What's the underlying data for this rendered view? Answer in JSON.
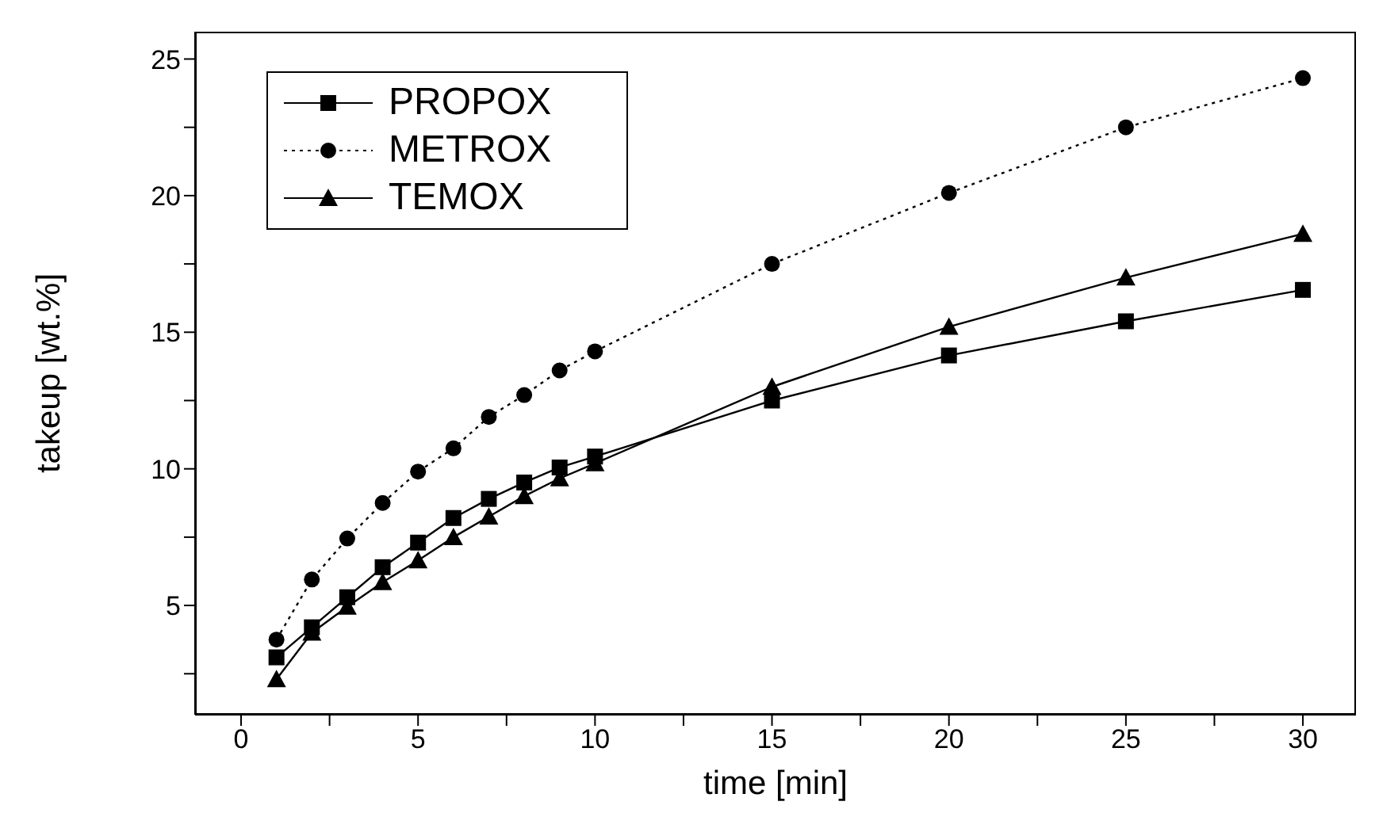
{
  "chart_data": {
    "type": "line",
    "xlabel": "time [min]",
    "ylabel": "takeup [wt.%]",
    "x": [
      1,
      2,
      3,
      4,
      5,
      6,
      7,
      8,
      9,
      10,
      15,
      20,
      25,
      30
    ],
    "series": [
      {
        "name": "PROPOX",
        "color": "#000000",
        "marker": "square",
        "line_style": "solid",
        "values": [
          3.1,
          4.2,
          5.3,
          6.4,
          7.3,
          8.2,
          8.9,
          9.5,
          10.05,
          10.45,
          12.5,
          14.15,
          15.4,
          16.55
        ]
      },
      {
        "name": "METROX",
        "color": "#000000",
        "marker": "circle",
        "line_style": "dotted",
        "values": [
          3.75,
          5.95,
          7.45,
          8.75,
          9.9,
          10.75,
          11.9,
          12.7,
          13.6,
          14.3,
          17.5,
          20.1,
          22.5,
          24.3
        ]
      },
      {
        "name": "TEMOX",
        "color": "#000000",
        "marker": "triangle",
        "line_style": "solid",
        "values": [
          2.3,
          4.0,
          4.95,
          5.85,
          6.65,
          7.5,
          8.25,
          9.0,
          9.65,
          10.2,
          13.0,
          15.2,
          17.0,
          18.6
        ]
      }
    ],
    "xlim": [
      -1.3,
      31.5
    ],
    "ylim": [
      1,
      26
    ],
    "xticks": [
      0,
      {
        "value": 2.5,
        "label": null
      },
      5,
      {
        "value": 7.5,
        "label": null
      },
      10,
      {
        "value": 12.5,
        "label": null
      },
      15,
      {
        "value": 17.5,
        "label": null
      },
      20,
      {
        "value": 22.5,
        "label": null
      },
      25,
      {
        "value": 27.5,
        "label": null
      },
      30
    ],
    "yticks": [
      {
        "value": 2.5,
        "label": null
      },
      5,
      {
        "value": 7.5,
        "label": null
      },
      10,
      {
        "value": 12.5,
        "label": null
      },
      15,
      {
        "value": 17.5,
        "label": null
      },
      20,
      {
        "value": 22.5,
        "label": null
      },
      25
    ],
    "grid": false,
    "legend": "top left"
  }
}
